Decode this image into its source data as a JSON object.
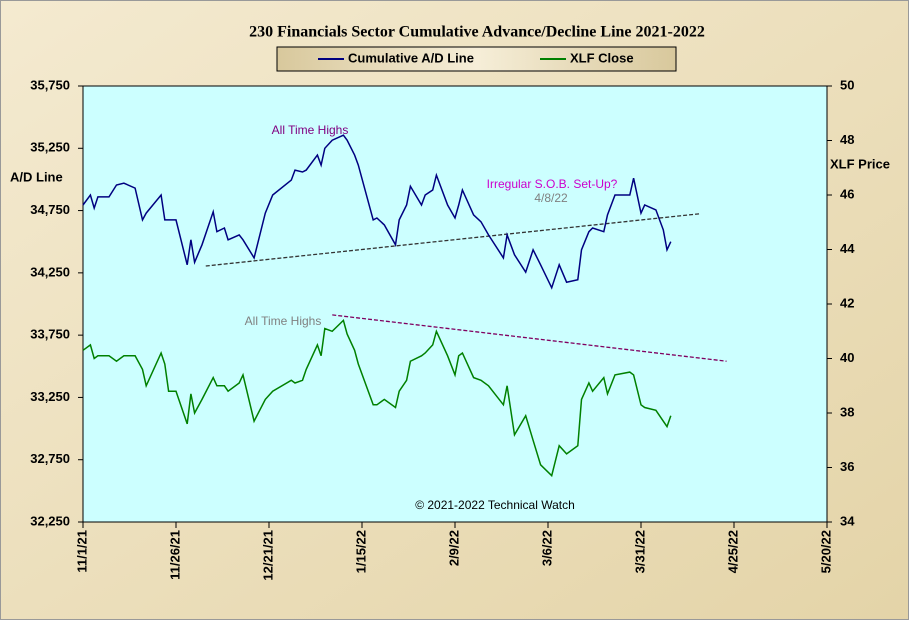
{
  "chart_data": {
    "type": "line",
    "title": "230 Financials  Sector Cumulative  Advance/Decline  Line 2021-2022",
    "y_label": "A/D Line",
    "y2_label": "XLF Price",
    "copyright": "© 2021-2022  Technical Watch",
    "annotations": [
      "All Time Highs",
      "All Time Highs",
      "Irregular  S.O.B. Set-Up?",
      "4/8/22"
    ],
    "grid": false,
    "xlim": [
      "2021-11-01",
      "2022-05-20"
    ],
    "xticks": [
      {
        "value": "2021-11-01",
        "label": "11/1/21"
      },
      {
        "value": "2021-11-26",
        "label": "11/26/21"
      },
      {
        "value": "2021-12-21",
        "label": "12/21/21"
      },
      {
        "value": "2022-01-15",
        "label": "1/15/22"
      },
      {
        "value": "2022-02-09",
        "label": "2/9/22"
      },
      {
        "value": "2022-03-06",
        "label": "3/6/22"
      },
      {
        "value": "2022-03-31",
        "label": "3/31/22"
      },
      {
        "value": "2022-04-25",
        "label": "4/25/22"
      },
      {
        "value": "2022-05-20",
        "label": "5/20/22"
      }
    ],
    "ylim": [
      32250,
      35750
    ],
    "yticks": [
      {
        "value": 32250,
        "label": "32,250"
      },
      {
        "value": 32750,
        "label": "32,750"
      },
      {
        "value": 33250,
        "label": "33,250"
      },
      {
        "value": 33750,
        "label": "33,750"
      },
      {
        "value": 34250,
        "label": "34,250"
      },
      {
        "value": 34750,
        "label": "34,750"
      },
      {
        "value": 35250,
        "label": "35,250"
      },
      {
        "value": 35750,
        "label": "35,750"
      }
    ],
    "y2lim": [
      34,
      50
    ],
    "y2ticks": [
      34,
      36,
      38,
      40,
      42,
      44,
      46,
      48,
      50
    ],
    "x": [
      "2021-11-01",
      "2021-11-03",
      "2021-11-04",
      "2021-11-05",
      "2021-11-08",
      "2021-11-10",
      "2021-11-12",
      "2021-11-15",
      "2021-11-17",
      "2021-11-18",
      "2021-11-22",
      "2021-11-23",
      "2021-11-24",
      "2021-11-26",
      "2021-11-29",
      "2021-11-30",
      "2021-12-01",
      "2021-12-03",
      "2021-12-06",
      "2021-12-07",
      "2021-12-09",
      "2021-12-10",
      "2021-12-13",
      "2021-12-14",
      "2021-12-17",
      "2021-12-20",
      "2021-12-22",
      "2021-12-27",
      "2021-12-28",
      "2021-12-30",
      "2021-12-31",
      "2022-01-03",
      "2022-01-04",
      "2022-01-05",
      "2022-01-07",
      "2022-01-10",
      "2022-01-11",
      "2022-01-13",
      "2022-01-14",
      "2022-01-18",
      "2022-01-19",
      "2022-01-21",
      "2022-01-24",
      "2022-01-25",
      "2022-01-27",
      "2022-01-28",
      "2022-01-31",
      "2022-02-01",
      "2022-02-03",
      "2022-02-04",
      "2022-02-07",
      "2022-02-09",
      "2022-02-10",
      "2022-02-11",
      "2022-02-14",
      "2022-02-16",
      "2022-02-18",
      "2022-02-22",
      "2022-02-23",
      "2022-02-25",
      "2022-02-28",
      "2022-03-02",
      "2022-03-04",
      "2022-03-07",
      "2022-03-09",
      "2022-03-11",
      "2022-03-14",
      "2022-03-15",
      "2022-03-17",
      "2022-03-18",
      "2022-03-21",
      "2022-03-22",
      "2022-03-24",
      "2022-03-28",
      "2022-03-29",
      "2022-03-31",
      "2022-04-01",
      "2022-04-04",
      "2022-04-06",
      "2022-04-07",
      "2022-04-08"
    ],
    "series": [
      {
        "name": "Cumulative A/D Line",
        "color": "#000080",
        "values": [
          34795,
          34875,
          34770,
          34860,
          34860,
          34955,
          34970,
          34930,
          34675,
          34730,
          34875,
          34675,
          34675,
          34675,
          34315,
          34515,
          34335,
          34475,
          34740,
          34580,
          34610,
          34515,
          34555,
          34515,
          34370,
          34730,
          34875,
          34995,
          35075,
          35060,
          35075,
          35195,
          35115,
          35250,
          35315,
          35355,
          35315,
          35195,
          35115,
          34675,
          34690,
          34635,
          34475,
          34675,
          34795,
          34945,
          34795,
          34875,
          34915,
          35035,
          34795,
          34690,
          34795,
          34915,
          34715,
          34660,
          34555,
          34370,
          34555,
          34395,
          34255,
          34435,
          34315,
          34130,
          34315,
          34175,
          34195,
          34435,
          34580,
          34610,
          34580,
          34715,
          34875,
          34875,
          35010,
          34730,
          34795,
          34755,
          34595,
          34435,
          34500
        ]
      },
      {
        "name": "XLF Close",
        "color": "#008000",
        "axis": "y2",
        "values": [
          40.3,
          40.5,
          40.0,
          40.1,
          40.1,
          39.9,
          40.1,
          40.1,
          39.6,
          39.0,
          40.2,
          39.8,
          38.8,
          38.8,
          37.6,
          38.7,
          38.0,
          38.5,
          39.3,
          39.0,
          39.0,
          38.8,
          39.1,
          39.4,
          37.7,
          38.5,
          38.8,
          39.2,
          39.1,
          39.2,
          39.6,
          40.5,
          40.1,
          41.1,
          41.0,
          41.4,
          40.9,
          40.3,
          39.8,
          38.3,
          38.3,
          38.5,
          38.2,
          38.8,
          39.2,
          39.9,
          40.1,
          40.2,
          40.5,
          41.0,
          40.1,
          39.4,
          40.1,
          40.2,
          39.3,
          39.2,
          39.0,
          38.3,
          39.0,
          37.2,
          37.9,
          37.0,
          36.1,
          35.7,
          36.8,
          36.5,
          36.8,
          38.5,
          39.1,
          38.8,
          39.3,
          38.7,
          39.4,
          39.5,
          39.4,
          38.3,
          38.2,
          38.1,
          37.7,
          37.5,
          37.9
        ]
      }
    ],
    "trendlines": [
      {
        "x": [
          "2021-12-04",
          "2022-04-16"
        ],
        "values": [
          34305,
          34725
        ],
        "color": "#333333"
      },
      {
        "x": [
          "2022-01-07",
          "2022-04-23"
        ],
        "values": [
          41.6,
          39.9
        ],
        "axis": "y2",
        "color": "#800060"
      }
    ]
  }
}
